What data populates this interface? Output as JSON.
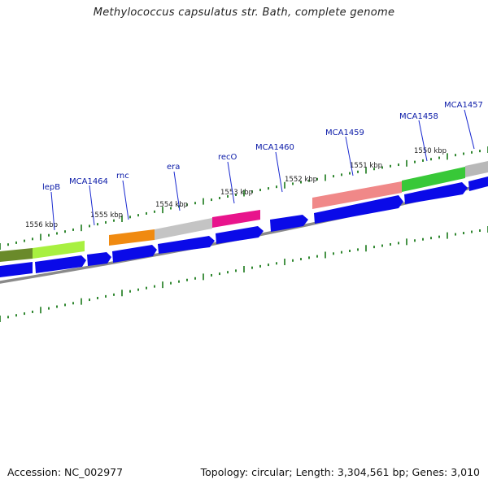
{
  "title": "Methylococcus capsulatus str. Bath, complete genome",
  "footer": {
    "accession": "Accession: NC_002977",
    "summary": "Topology: circular; Length: 3,304,561 bp; Genes: 3,010"
  },
  "kbp_labels": [
    "1556 kbp",
    "1555 kbp",
    "1554 kbp",
    "1553 kbp",
    "1552 kbp",
    "1551 kbp",
    "1550 kbp"
  ],
  "gene_labels": [
    "lepB",
    "MCA1464",
    "rnc",
    "era",
    "recO",
    "MCA1460",
    "MCA1459",
    "MCA1458",
    "MCA1457"
  ],
  "colors": {
    "gene_arrow": "#0a0ae8",
    "backbone": "#808080",
    "tick": "#1a7a1a",
    "label_line": "#1a2ad0",
    "olive": "#6a8a2a",
    "lime": "#a8f040",
    "orange": "#f08a10",
    "light_gray": "#c4c4c4",
    "magenta": "#e8148c",
    "salmon": "#f08888",
    "green": "#38c838",
    "gray_right": "#b8b8b8"
  }
}
